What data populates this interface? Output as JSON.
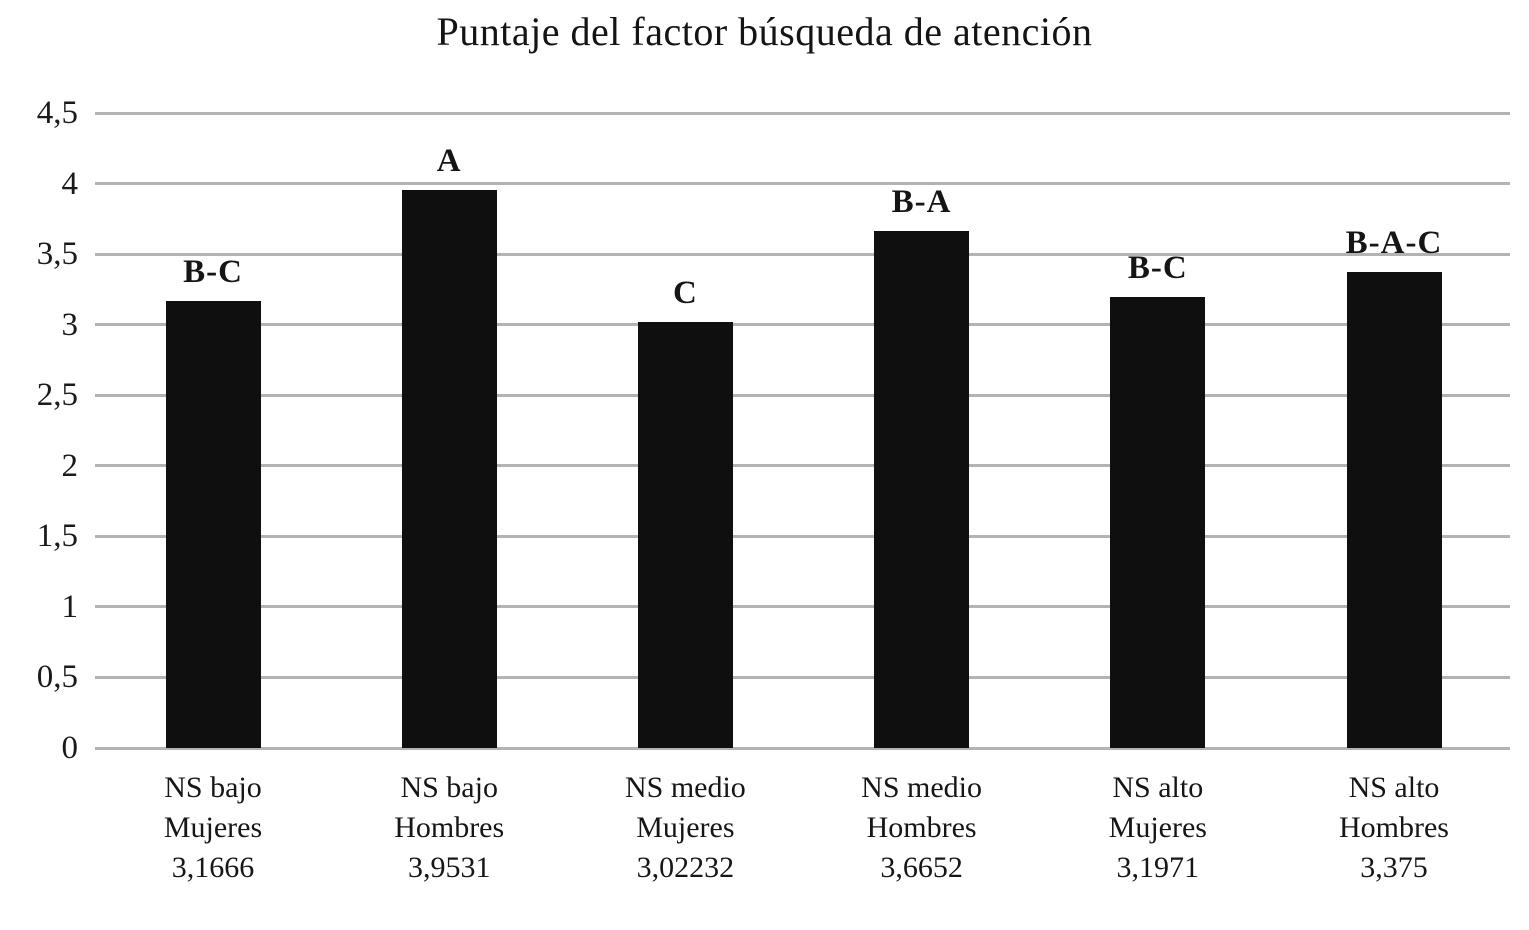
{
  "chart_data": {
    "type": "bar",
    "title": "Puntaje del factor búsqueda de atención",
    "xlabel": "",
    "ylabel": "",
    "ylim": [
      0,
      4.5
    ],
    "ytick_step": 0.5,
    "ytick_labels": [
      "4,5",
      "4",
      "3,5",
      "3",
      "2,5",
      "2",
      "1,5",
      "1",
      "0,5",
      "0"
    ],
    "grid": true,
    "legend_position": "none",
    "bar_color": "#0f0f0f",
    "gridline_color": "#b3b3b3",
    "categories": [
      "NS bajo Mujeres",
      "NS bajo Hombres",
      "NS medio Mujeres",
      "NS medio Hombres",
      "NS alto Mujeres",
      "NS alto Hombres"
    ],
    "values": [
      3.1666,
      3.9531,
      3.02232,
      3.6652,
      3.1971,
      3.375
    ],
    "bars": [
      {
        "tick_line1": "NS bajo",
        "tick_line2": "Mujeres",
        "tick_value_label": "3,1666",
        "value": 3.1666,
        "annotation": "B-C"
      },
      {
        "tick_line1": "NS bajo",
        "tick_line2": "Hombres",
        "tick_value_label": "3,9531",
        "value": 3.9531,
        "annotation": "A"
      },
      {
        "tick_line1": "NS medio",
        "tick_line2": "Mujeres",
        "tick_value_label": "3,02232",
        "value": 3.02232,
        "annotation": "C"
      },
      {
        "tick_line1": "NS medio",
        "tick_line2": "Hombres",
        "tick_value_label": "3,6652",
        "value": 3.6652,
        "annotation": "B-A"
      },
      {
        "tick_line1": "NS alto",
        "tick_line2": "Mujeres",
        "tick_value_label": "3,1971",
        "value": 3.1971,
        "annotation": "B-C"
      },
      {
        "tick_line1": "NS alto",
        "tick_line2": "Hombres",
        "tick_value_label": "3,375",
        "value": 3.375,
        "annotation": "B-A-C"
      }
    ]
  }
}
